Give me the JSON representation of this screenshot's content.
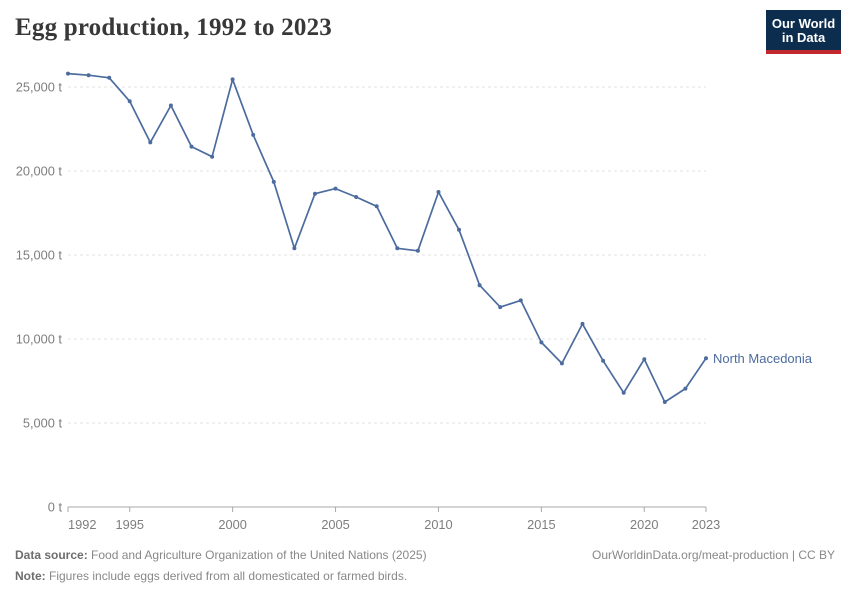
{
  "header": {
    "title": "Egg production, 1992 to 2023",
    "logo": {
      "line1": "Our World",
      "line2": "in Data"
    }
  },
  "chart_data": {
    "type": "line",
    "title": "Egg production, 1992 to 2023",
    "xlabel": "",
    "ylabel": "",
    "unit": "t",
    "xlim": [
      1992,
      2023
    ],
    "ylim": [
      0,
      25000
    ],
    "grid": "horizontal-dashed",
    "legend_position": "label-at-line-end",
    "x_ticks": [
      1992,
      1995,
      2000,
      2005,
      2010,
      2015,
      2020,
      2023
    ],
    "y_ticks": [
      {
        "value": 0,
        "label": "0 t"
      },
      {
        "value": 5000,
        "label": "5,000 t"
      },
      {
        "value": 10000,
        "label": "10,000 t"
      },
      {
        "value": 15000,
        "label": "15,000 t"
      },
      {
        "value": 20000,
        "label": "20,000 t"
      },
      {
        "value": 25000,
        "label": "25,000 t"
      }
    ],
    "series": [
      {
        "name": "North Macedonia",
        "color": "#4C6B9E",
        "x": [
          1992,
          1993,
          1994,
          1995,
          1996,
          1997,
          1998,
          1999,
          2000,
          2001,
          2002,
          2003,
          2004,
          2005,
          2006,
          2007,
          2008,
          2009,
          2010,
          2011,
          2012,
          2013,
          2014,
          2015,
          2016,
          2017,
          2018,
          2019,
          2020,
          2021,
          2022,
          2023
        ],
        "values": [
          25800,
          25700,
          25550,
          24150,
          21700,
          23900,
          21450,
          20850,
          25450,
          22150,
          19350,
          15400,
          18650,
          18950,
          18450,
          17900,
          15400,
          15250,
          18750,
          16500,
          13200,
          11900,
          12300,
          9800,
          8550,
          10900,
          8700,
          6800,
          8800,
          6250,
          7050,
          8850
        ]
      }
    ]
  },
  "footer": {
    "source_label": "Data source:",
    "source_text": " Food and Agriculture Organization of the United Nations (2025)",
    "note_label": "Note:",
    "note_text": " Figures include eggs derived from all domesticated or farmed birds.",
    "right_text": "OurWorldinData.org/meat-production | CC BY"
  },
  "colors": {
    "accent_blue": "#4C6B9E",
    "logo_navy": "#0d2d4f",
    "logo_red": "#c0282d",
    "title_text": "#383838",
    "axis_text": "#7e7e7e",
    "gridline": "#e3e3e3",
    "axis_line": "#a8a8a8",
    "footer_text": "#888888"
  }
}
